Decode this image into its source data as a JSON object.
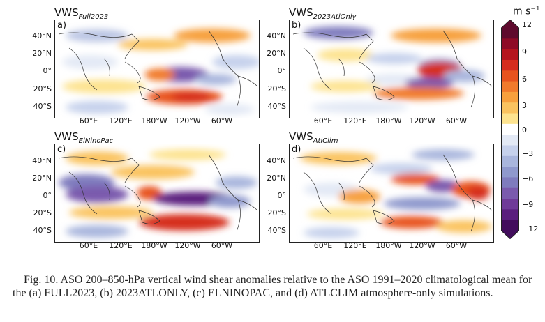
{
  "colorbar": {
    "unit_base": "m s",
    "unit_exp": "−1",
    "ticks": [
      "12",
      "9",
      "6",
      "3",
      "0",
      "−3",
      "−6",
      "−9",
      "−12"
    ],
    "colors": [
      "#5e0a2d",
      "#8e0b26",
      "#b4141e",
      "#d62d1e",
      "#e8531e",
      "#f17a2c",
      "#f7a03d",
      "#fac35f",
      "#fde38f",
      "#ffffff",
      "#e3e9f5",
      "#c6d1ec",
      "#a9b6dd",
      "#8f99cd",
      "#7f7cbe",
      "#7a5aad",
      "#6f3a98",
      "#5a1e7d",
      "#420d5c"
    ]
  },
  "lat_labels": [
    "40°N",
    "20°N",
    "0°",
    "20°S",
    "40°S"
  ],
  "lon_labels": [
    "60°E",
    "120°E",
    "180°W",
    "120°W",
    "60°W"
  ],
  "panels": [
    {
      "title_main": "VWS",
      "title_sub": "Full2023",
      "letter": "a)"
    },
    {
      "title_main": "VWS",
      "title_sub": "2023AtlOnly",
      "letter": "b)"
    },
    {
      "title_main": "VWS",
      "title_sub": "ElNinoPac",
      "letter": "c)"
    },
    {
      "title_main": "VWS",
      "title_sub": "AtlClim",
      "letter": "d)"
    }
  ],
  "caption": "Fig. 10. ASO 200–850-hPa vertical wind shear anomalies relative to the ASO 1991–2020 climatological mean for the (a) FULL2023, (b) 2023ATLONLY, (c) ELNINOPAC, and (d) ATLCLIM atmosphere-only simulations."
}
